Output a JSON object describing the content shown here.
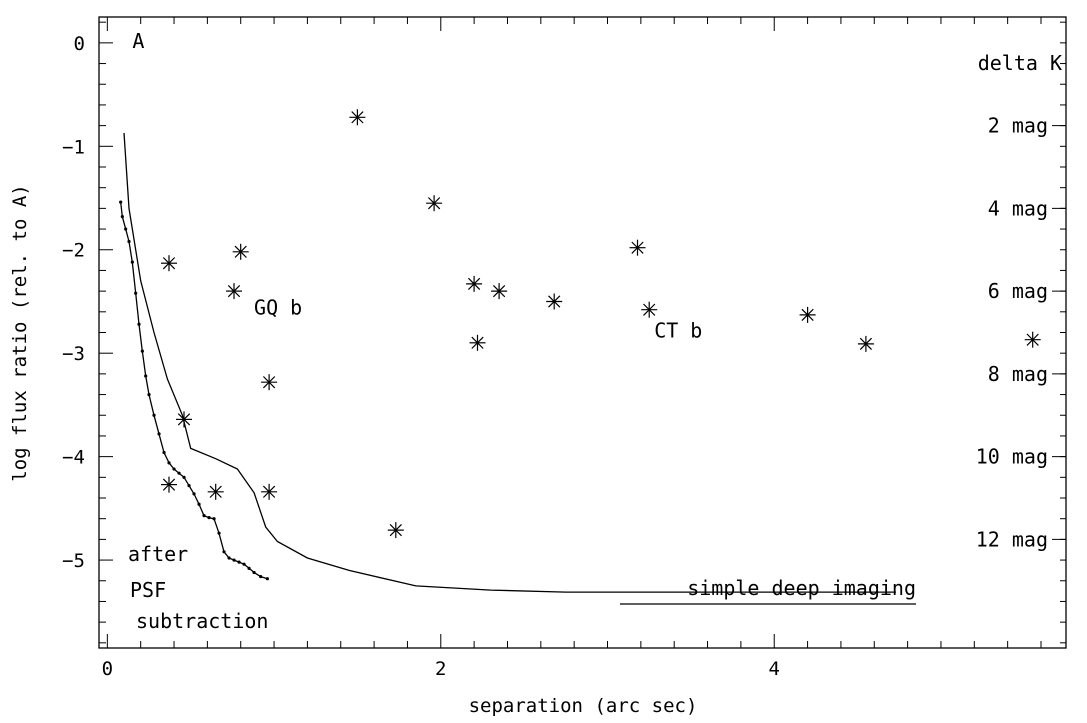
{
  "chart_data": {
    "type": "scatter",
    "title": "",
    "xlabel": "separation (arc sec)",
    "ylabel": "log flux ratio (rel. to A)",
    "xlim": [
      -0.05,
      5.75
    ],
    "ylim": [
      -5.85,
      0.25
    ],
    "x_ticks": [
      {
        "value": 0,
        "label": "0"
      },
      {
        "value": 2,
        "label": "2"
      },
      {
        "value": 4,
        "label": "4"
      }
    ],
    "y_ticks": [
      {
        "value": 0,
        "label": "0"
      },
      {
        "value": -1,
        "label": "−1"
      },
      {
        "value": -2,
        "label": "−2"
      },
      {
        "value": -3,
        "label": "−3"
      },
      {
        "value": -4,
        "label": "−4"
      },
      {
        "value": -5,
        "label": "−5"
      }
    ],
    "right_axis": {
      "title": "delta K",
      "labels": [
        {
          "value": -0.8,
          "label": "2 mag"
        },
        {
          "value": -1.6,
          "label": "4 mag"
        },
        {
          "value": -2.4,
          "label": "6 mag"
        },
        {
          "value": -3.2,
          "label": "8 mag"
        },
        {
          "value": -4.0,
          "label": "10 mag"
        },
        {
          "value": -4.8,
          "label": "12 mag"
        }
      ]
    },
    "points": [
      {
        "x": 1.5,
        "y": -0.72
      },
      {
        "x": 1.96,
        "y": -1.55
      },
      {
        "x": 0.37,
        "y": -2.13
      },
      {
        "x": 0.8,
        "y": -2.02
      },
      {
        "x": 0.76,
        "y": -2.4
      },
      {
        "x": 0.97,
        "y": -3.28
      },
      {
        "x": 0.46,
        "y": -3.64
      },
      {
        "x": 0.37,
        "y": -4.27
      },
      {
        "x": 0.65,
        "y": -4.34
      },
      {
        "x": 0.97,
        "y": -4.34
      },
      {
        "x": 1.73,
        "y": -4.71
      },
      {
        "x": 2.2,
        "y": -2.33
      },
      {
        "x": 2.35,
        "y": -2.4
      },
      {
        "x": 2.22,
        "y": -2.9
      },
      {
        "x": 2.68,
        "y": -2.5
      },
      {
        "x": 3.18,
        "y": -1.98
      },
      {
        "x": 3.25,
        "y": -2.58
      },
      {
        "x": 4.2,
        "y": -2.63
      },
      {
        "x": 4.55,
        "y": -2.91
      },
      {
        "x": 5.55,
        "y": -2.87
      }
    ],
    "curves": [
      {
        "name": "simple deep imaging",
        "points": [
          [
            0.1,
            -0.87
          ],
          [
            0.13,
            -1.6
          ],
          [
            0.2,
            -2.3
          ],
          [
            0.28,
            -2.8
          ],
          [
            0.36,
            -3.25
          ],
          [
            0.45,
            -3.6
          ],
          [
            0.5,
            -3.92
          ],
          [
            0.65,
            -4.02
          ],
          [
            0.78,
            -4.12
          ],
          [
            0.88,
            -4.35
          ],
          [
            0.95,
            -4.68
          ],
          [
            1.02,
            -4.82
          ],
          [
            1.2,
            -4.98
          ],
          [
            1.45,
            -5.1
          ],
          [
            1.85,
            -5.25
          ],
          [
            2.3,
            -5.29
          ],
          [
            2.75,
            -5.31
          ],
          [
            3.5,
            -5.31
          ],
          [
            4.73,
            -5.31
          ]
        ]
      },
      {
        "name": "after PSF subtraction",
        "points": [
          [
            0.08,
            -1.54
          ],
          [
            0.09,
            -1.68
          ],
          [
            0.11,
            -1.8
          ],
          [
            0.13,
            -1.92
          ],
          [
            0.15,
            -2.12
          ],
          [
            0.17,
            -2.42
          ],
          [
            0.19,
            -2.72
          ],
          [
            0.21,
            -2.98
          ],
          [
            0.23,
            -3.22
          ],
          [
            0.25,
            -3.4
          ],
          [
            0.28,
            -3.6
          ],
          [
            0.31,
            -3.78
          ],
          [
            0.34,
            -3.96
          ],
          [
            0.37,
            -4.06
          ],
          [
            0.4,
            -4.12
          ],
          [
            0.43,
            -4.16
          ],
          [
            0.46,
            -4.2
          ],
          [
            0.49,
            -4.28
          ],
          [
            0.52,
            -4.36
          ],
          [
            0.55,
            -4.46
          ],
          [
            0.58,
            -4.57
          ],
          [
            0.61,
            -4.59
          ],
          [
            0.64,
            -4.6
          ],
          [
            0.67,
            -4.74
          ],
          [
            0.7,
            -4.92
          ],
          [
            0.73,
            -4.98
          ],
          [
            0.76,
            -5.0
          ],
          [
            0.79,
            -5.02
          ],
          [
            0.82,
            -5.04
          ],
          [
            0.85,
            -5.08
          ],
          [
            0.88,
            -5.12
          ],
          [
            0.92,
            -5.16
          ],
          [
            0.96,
            -5.18
          ]
        ]
      }
    ],
    "annotations": [
      {
        "text": "A",
        "x": 0.15,
        "y": 0.02
      },
      {
        "text": "GQ b",
        "x": 0.88,
        "y": -2.56
      },
      {
        "text": "CT b",
        "x": 3.28,
        "y": -2.78
      }
    ],
    "curve_labels": {
      "deep": "simple deep imaging",
      "psf_lines": [
        "after",
        "PSF",
        "subtraction"
      ]
    },
    "grid": false,
    "legend": "none"
  }
}
